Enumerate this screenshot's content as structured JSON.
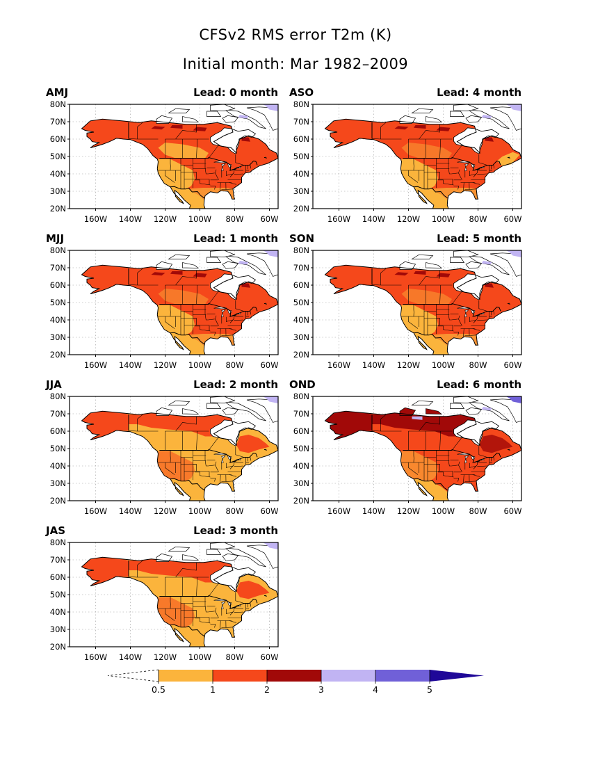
{
  "title": {
    "line1": "CFSv2 RMS error T2m (K)",
    "line2": "Initial month: Mar 1982–2009"
  },
  "panels": [
    {
      "season": "AMJ",
      "lead": "Lead: 0 month",
      "level": 1
    },
    {
      "season": "ASO",
      "lead": "Lead: 4 month",
      "level": 1
    },
    {
      "season": "MJJ",
      "lead": "Lead: 1 month",
      "level": 1
    },
    {
      "season": "SON",
      "lead": "Lead: 5 month",
      "level": 1
    },
    {
      "season": "JJA",
      "lead": "Lead: 2 month",
      "level": 0
    },
    {
      "season": "OND",
      "lead": "Lead: 6 month",
      "level": 2
    },
    {
      "season": "JAS",
      "lead": "Lead: 3 month",
      "level": 0
    }
  ],
  "axes": {
    "lat_labels": [
      "80N",
      "70N",
      "60N",
      "50N",
      "40N",
      "30N",
      "20N"
    ],
    "lon_labels": [
      "160W",
      "140W",
      "120W",
      "100W",
      "80W",
      "60W"
    ]
  },
  "colorbar": {
    "ticks": [
      "0.5",
      "1",
      "2",
      "3",
      "4",
      "5"
    ],
    "colors": [
      "#fbb43c",
      "#f5481b",
      "#a10908",
      "#c1b4f3",
      "#7060d8",
      "#1f0898"
    ]
  },
  "colors": {
    "land_low": "#fbb43c",
    "land_mid": "#f5481b",
    "land_high": "#a10908",
    "purple_light": "#c1b4f3",
    "purple_mid": "#7060d8",
    "ocean": "#ffffff"
  }
}
